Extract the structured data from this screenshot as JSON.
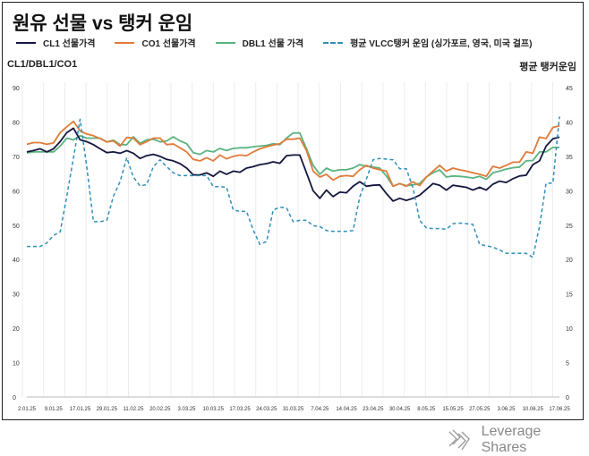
{
  "title": "원유 선물 vs 탱커 운임",
  "left_axis_title": "CL1/DBL1/CO1",
  "right_axis_title": "평균 탱커운임",
  "brand": "Leverage Shares",
  "colors": {
    "cl1": "#14163d",
    "co1": "#e07b39",
    "dbl1": "#5bb37f",
    "tanker": "#2f8fb8"
  },
  "chart_data": {
    "type": "line",
    "title": "원유 선물 vs 탱커 운임",
    "xlabel": "",
    "ylabel": "CL1/DBL1/CO1",
    "ylabel_right": "평균 탱커운임",
    "ylim": [
      0,
      90
    ],
    "ylim_right": [
      0,
      45
    ],
    "yticks": [
      0,
      10,
      20,
      30,
      40,
      50,
      60,
      70,
      80,
      90
    ],
    "yticks_right": [
      0,
      5,
      10,
      15,
      20,
      25,
      30,
      35,
      40,
      45
    ],
    "grid": "vertical",
    "legend_position": "top",
    "x_tick_labels": [
      "2.01.25",
      "9.01.25",
      "17.01.25",
      "29.01.25",
      "11.02.25",
      "20.02.25",
      "3.03.25",
      "10.03.25",
      "17.03.25",
      "24.03.25",
      "31.03.25",
      "7.04.25",
      "14.04.25",
      "23.04.25",
      "30.04.25",
      "8.05.25",
      "15.05.25",
      "27.05.25",
      "3.06.25",
      "10.06.25",
      "17.06.25"
    ],
    "series": [
      {
        "name": "CL1 선물가격",
        "axis": "left",
        "style": "solid",
        "values": [
          71.3,
          71.7,
          72.2,
          71.3,
          72.2,
          74.3,
          76.9,
          78.2,
          74.8,
          74.3,
          73.4,
          72.2,
          71.1,
          71.3,
          70.9,
          71.7,
          70.9,
          69.4,
          70.2,
          70.6,
          70.0,
          69.1,
          68.7,
          67.9,
          66.6,
          64.6,
          64.6,
          65.2,
          64.2,
          65.7,
          64.8,
          65.7,
          65.4,
          66.6,
          67.0,
          67.6,
          67.9,
          68.4,
          68.0,
          70.2,
          70.4,
          70.4,
          65.2,
          60.0,
          57.8,
          60.2,
          58.3,
          59.6,
          59.4,
          61.3,
          62.6,
          61.3,
          61.6,
          61.7,
          59.2,
          57.0,
          57.8,
          57.2,
          57.8,
          58.7,
          60.4,
          62.1,
          61.6,
          60.2,
          61.6,
          61.3,
          61.0,
          60.2,
          61.0,
          60.2,
          61.9,
          62.8,
          62.4,
          63.5,
          64.3,
          64.5,
          67.6,
          68.7,
          73.0,
          75.1,
          75.6
        ]
      },
      {
        "name": "CO1 선물가격",
        "axis": "left",
        "style": "solid",
        "values": [
          73.5,
          74.0,
          74.0,
          73.5,
          73.9,
          76.9,
          78.6,
          80.2,
          77.4,
          76.5,
          76.0,
          75.2,
          74.2,
          74.5,
          73.0,
          75.5,
          75.3,
          73.4,
          74.3,
          75.3,
          75.3,
          73.4,
          73.6,
          72.5,
          71.3,
          69.1,
          68.7,
          69.6,
          68.7,
          70.4,
          69.3,
          70.0,
          70.4,
          70.2,
          71.3,
          72.2,
          72.8,
          73.3,
          73.7,
          75.0,
          75.0,
          75.3,
          71.7,
          65.7,
          64.0,
          64.8,
          63.1,
          64.2,
          64.4,
          64.2,
          66.1,
          67.4,
          66.6,
          66.1,
          65.7,
          61.3,
          62.1,
          61.3,
          62.6,
          61.5,
          64.0,
          65.7,
          67.4,
          65.7,
          66.6,
          66.1,
          65.7,
          65.2,
          64.8,
          64.2,
          67.1,
          66.6,
          67.4,
          68.3,
          68.3,
          71.3,
          70.9,
          75.6,
          75.2,
          78.4,
          78.9
        ]
      },
      {
        "name": "DBL1 선물 가격",
        "axis": "left",
        "style": "solid",
        "values": [
          71.0,
          71.3,
          71.3,
          71.3,
          71.3,
          73.0,
          75.3,
          74.8,
          76.0,
          75.3,
          75.3,
          75.3,
          74.2,
          74.7,
          73.4,
          73.4,
          75.7,
          73.8,
          74.8,
          75.0,
          74.2,
          74.5,
          75.7,
          74.5,
          73.7,
          71.1,
          70.6,
          71.7,
          71.3,
          72.3,
          71.7,
          72.3,
          72.5,
          72.5,
          72.8,
          73.0,
          73.2,
          73.7,
          73.4,
          75.3,
          76.8,
          76.8,
          72.2,
          67.4,
          64.8,
          66.6,
          65.7,
          66.1,
          66.1,
          66.6,
          67.6,
          67.1,
          66.9,
          66.6,
          64.3,
          61.3,
          62.1,
          61.5,
          61.7,
          62.1,
          64.0,
          65.2,
          66.1,
          64.0,
          64.3,
          64.2,
          64.0,
          63.7,
          64.2,
          63.3,
          65.2,
          65.7,
          66.3,
          66.7,
          66.9,
          68.7,
          68.8,
          71.3,
          71.3,
          72.6,
          72.6
        ]
      },
      {
        "name": "평균 VLCC탱커 운임 (싱가포르, 영국, 미국 걸프)",
        "axis": "right",
        "style": "dashed",
        "values": [
          21.9,
          21.9,
          21.9,
          22.4,
          23.5,
          24.0,
          29.2,
          34.8,
          40.4,
          33.5,
          25.5,
          25.5,
          25.7,
          29.2,
          31.3,
          34.8,
          32.0,
          30.7,
          30.9,
          33.5,
          34.5,
          33.5,
          32.6,
          32.2,
          32.2,
          32.2,
          32.2,
          32.2,
          30.6,
          30.6,
          30.5,
          27.2,
          27.0,
          27.0,
          24.3,
          22.2,
          22.6,
          27.2,
          27.6,
          27.5,
          25.5,
          25.7,
          25.7,
          24.9,
          24.8,
          24.2,
          24.1,
          24.1,
          24.1,
          24.2,
          29.1,
          31.7,
          34.5,
          34.7,
          34.6,
          34.5,
          33.2,
          33.2,
          30.4,
          25.7,
          24.6,
          24.5,
          24.5,
          24.4,
          25.2,
          25.3,
          25.2,
          25.1,
          22.2,
          22.0,
          21.8,
          21.4,
          20.9,
          20.9,
          20.9,
          20.9,
          20.3,
          24.8,
          31.1,
          31.1,
          40.8
        ]
      }
    ]
  }
}
